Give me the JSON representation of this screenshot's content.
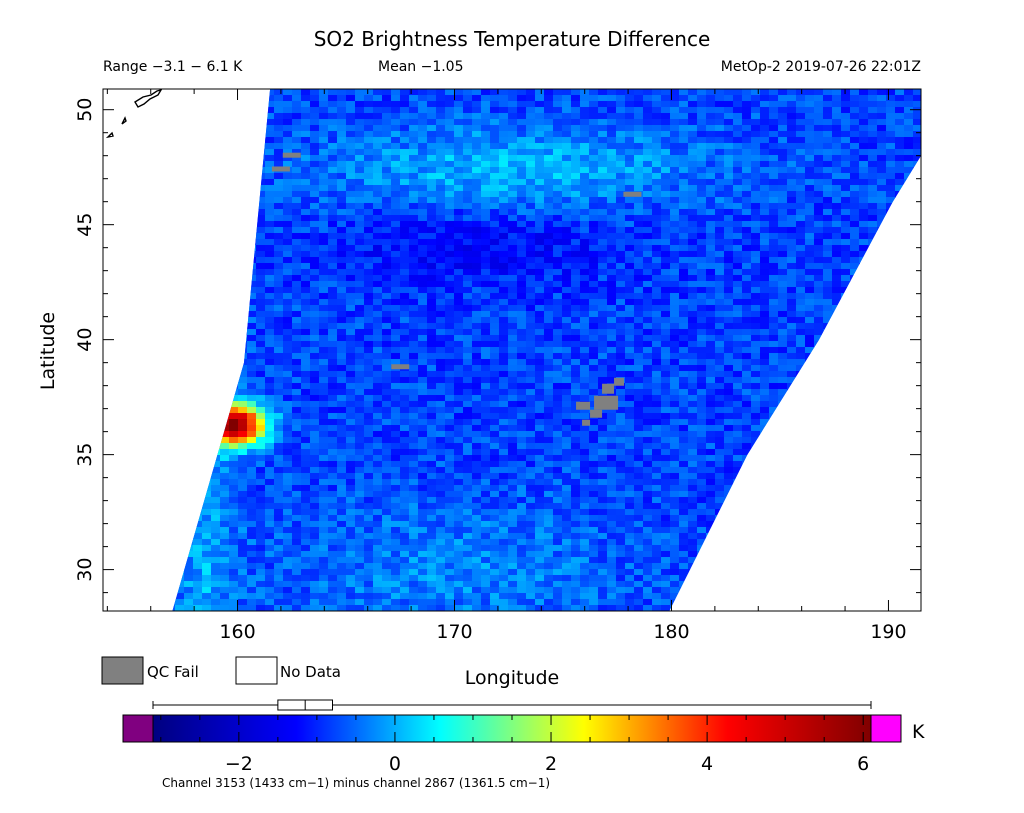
{
  "chart_data": {
    "type": "heatmap",
    "title": "SO2 Brightness Temperature Difference",
    "subtitle_left": "Range −3.1 − 6.1 K",
    "subtitle_center": "Mean −1.05",
    "subtitle_right": "MetOp-2 2019-07-26 22:01Z",
    "xlabel": "Longitude",
    "ylabel": "Latitude",
    "xlim": [
      153.8,
      191.5
    ],
    "ylim": [
      28.2,
      50.9
    ],
    "xticks": [
      160,
      170,
      180,
      190
    ],
    "yticks": [
      30,
      35,
      40,
      45,
      50
    ],
    "xtick_labels": [
      "160",
      "170",
      "180",
      "190"
    ],
    "ytick_labels": [
      "30",
      "35",
      "40",
      "45",
      "50"
    ],
    "swath": {
      "left_edge": [
        [
          157.0,
          28.2
        ],
        [
          160.3,
          39.0
        ],
        [
          161.5,
          50.9
        ]
      ],
      "right_edge": [
        [
          179.9,
          28.2
        ],
        [
          183.5,
          35.0
        ],
        [
          186.8,
          40.0
        ],
        [
          190.2,
          46.0
        ],
        [
          191.5,
          48.0
        ]
      ]
    },
    "features": [
      {
        "label": "SO2 plume",
        "lon": 159.9,
        "lat": 36.3,
        "value": 5.5
      },
      {
        "label": "background",
        "lon": 170.0,
        "lat": 40.0,
        "value": -1.05
      },
      {
        "label": "QC fail cluster",
        "lon": 176.8,
        "lat": 37.3,
        "value": null
      }
    ],
    "colorbar": {
      "min": -3.1,
      "max": 6.1,
      "ticks": [
        -2,
        0,
        2,
        4,
        6
      ],
      "tick_labels": [
        "−2",
        "0",
        "2",
        "4",
        "6"
      ],
      "unit": "K",
      "under_color": "#800080",
      "over_color": "#ff00ff",
      "colors": [
        "#000080",
        "#0000ff",
        "#00ffff",
        "#ffff00",
        "#ff0000",
        "#800000"
      ]
    },
    "boxplot": {
      "min": -3.1,
      "q1": -1.5,
      "median": -1.15,
      "q3": -0.8,
      "max": 6.1
    },
    "legend": [
      {
        "label": "QC Fail",
        "color": "#808080"
      },
      {
        "label": "No Data",
        "color": "#ffffff"
      }
    ],
    "caption": "Channel 3153 (1433 cm−1) minus channel 2867 (1361.5 cm−1)"
  }
}
